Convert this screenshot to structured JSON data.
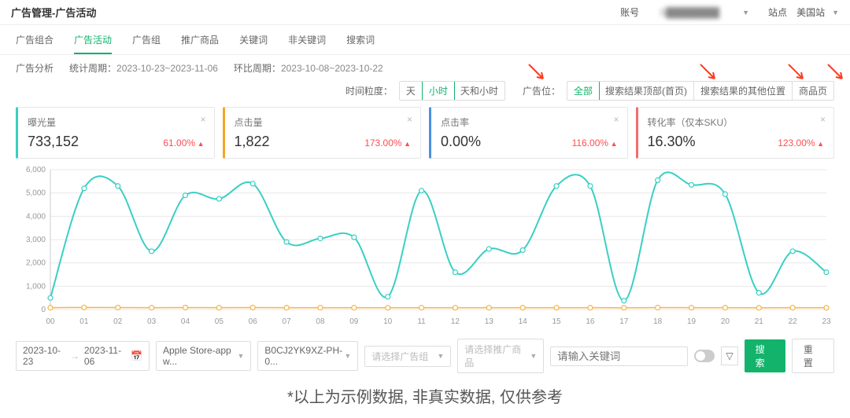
{
  "header": {
    "title": "广告管理-广告活动",
    "account_label": "账号",
    "account_value": "S████████",
    "site_label": "站点",
    "site_value": "美国站"
  },
  "tabs": {
    "items": [
      "广告组合",
      "广告活动",
      "广告组",
      "推广商品",
      "关键词",
      "非关键词",
      "搜索词"
    ],
    "active": "广告活动"
  },
  "period": {
    "label1": "广告分析",
    "label2": "统计周期：",
    "stat": "2023-10-23~2023-11-06",
    "label3": "环比周期：",
    "comp": "2023-10-08~2023-10-22"
  },
  "filters": {
    "gran_label": "时间粒度：",
    "gran_opts": [
      "天",
      "小时",
      "天和小时"
    ],
    "gran_active": "小时",
    "pos_label": "广告位：",
    "pos_opts": [
      "全部",
      "搜索结果顶部(首页)",
      "搜索结果的其他位置",
      "商品页"
    ],
    "pos_active": "全部"
  },
  "metrics": [
    {
      "label": "曝光量",
      "value": "733,152",
      "delta": "61.00%"
    },
    {
      "label": "点击量",
      "value": "1,822",
      "delta": "173.00%"
    },
    {
      "label": "点击率",
      "value": "0.00%",
      "delta": "116.00%"
    },
    {
      "label": "转化率（仅本SKU）",
      "value": "16.30%",
      "delta": "123.00%"
    }
  ],
  "chart": {
    "type": "line",
    "x_labels": [
      "00",
      "01",
      "02",
      "03",
      "04",
      "05",
      "06",
      "07",
      "08",
      "09",
      "10",
      "11",
      "12",
      "13",
      "14",
      "15",
      "16",
      "17",
      "18",
      "19",
      "20",
      "21",
      "22",
      "23"
    ],
    "ylim": [
      0,
      6000
    ],
    "ytick_step": 1000,
    "grid_color": "#e8e8e8",
    "background_color": "#ffffff",
    "series": [
      {
        "name": "曝光量",
        "color": "#3acfc4",
        "width": 2,
        "values": [
          500,
          5200,
          5300,
          2500,
          4900,
          4750,
          5400,
          2900,
          3050,
          3100,
          550,
          5100,
          1600,
          2600,
          2550,
          5300,
          5300,
          380,
          5550,
          5350,
          4950,
          720,
          2500,
          1600
        ]
      },
      {
        "name": "点击量",
        "color": "#f5b54a",
        "width": 1.5,
        "values": [
          80,
          90,
          85,
          80,
          85,
          80,
          85,
          80,
          82,
          80,
          78,
          82,
          78,
          80,
          80,
          82,
          80,
          76,
          84,
          82,
          80,
          76,
          80,
          78
        ]
      }
    ],
    "marker": "circle",
    "marker_size": 3
  },
  "controls": {
    "date_from": "2023-10-23",
    "date_to": "2023-11-06",
    "select1": "Apple Store-app w...",
    "select2": "B0CJ2YK9XZ-PH-0...",
    "select3": "请选择广告组",
    "select4": "请选择推广商品",
    "input_ph": "请输入关键词",
    "btn_search": "搜 索",
    "btn_reset": "重 置"
  },
  "disclaimer": "*以上为示例数据, 非真实数据, 仅供参考"
}
